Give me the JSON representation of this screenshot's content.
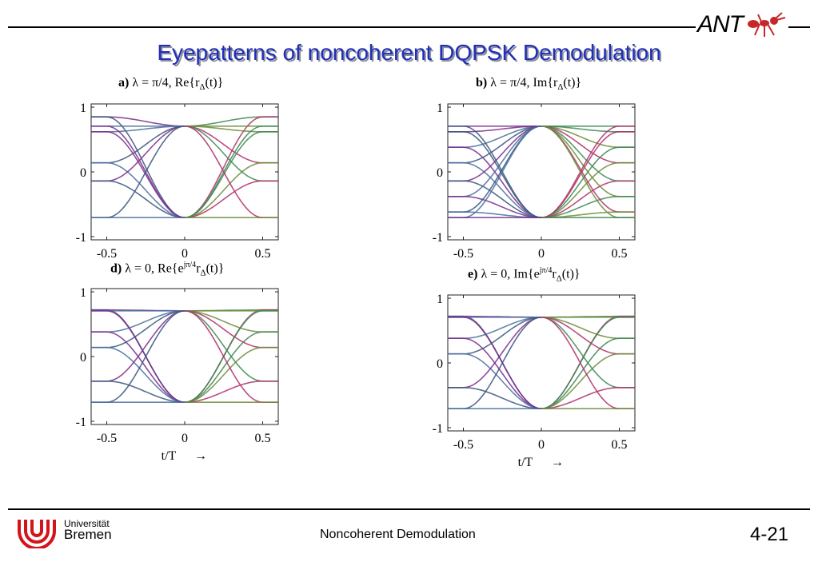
{
  "header": {
    "title": "Eyepatterns of noncoherent DQPSK Demodulation",
    "logo_text": "ANT"
  },
  "footer": {
    "uni_line1": "Universität",
    "uni_line2": "Bremen",
    "topic": "Noncoherent Demodulation",
    "page": "4-21"
  },
  "axis_arrow": "→",
  "colors": {
    "title": "#1f2fb8",
    "traces": [
      "#7a2e8c",
      "#3d8a52",
      "#39557e",
      "#b0306a",
      "#4a6f9e",
      "#6c8c3a"
    ]
  },
  "chart_data": [
    {
      "type": "line",
      "panel_label": "a)",
      "title_main": "λ = π/4, Re{r",
      "title_sub": "Δ",
      "title_end": "(t)}",
      "xlabel": "",
      "xlim": [
        -0.6,
        0.6
      ],
      "ylim": [
        -1.05,
        1.05
      ],
      "xticks": [
        -0.5,
        0,
        0.5
      ],
      "xtick_labels": [
        "-0.5",
        "0",
        "0.5"
      ],
      "yticks": [
        -1,
        0,
        1
      ],
      "ytick_labels": [
        "-1",
        "0",
        "1"
      ],
      "center_value": 0.707,
      "edge_levels": [
        0.85,
        0.62,
        0.14,
        -0.14
      ]
    },
    {
      "type": "line",
      "panel_label": "b)",
      "title_main": "λ = π/4, Im{r",
      "title_sub": "Δ",
      "title_end": "(t)}",
      "xlabel": "",
      "xlim": [
        -0.6,
        0.6
      ],
      "ylim": [
        -1.05,
        1.05
      ],
      "xticks": [
        -0.5,
        0,
        0.5
      ],
      "xtick_labels": [
        "-0.5",
        "0",
        "0.5"
      ],
      "yticks": [
        -1,
        0,
        1
      ],
      "ytick_labels": [
        "-1",
        "0",
        "1"
      ],
      "center_value": 0.707,
      "edge_levels": [
        0.62,
        0.38,
        0.14,
        -0.14,
        -0.38,
        -0.62
      ]
    },
    {
      "type": "line",
      "panel_label": "d)",
      "title_main": "λ = 0, Re{e",
      "title_sup": "jπ/4",
      "title_mid": "r",
      "title_sub": "Δ",
      "title_end": "(t)}",
      "xlabel": "t/T",
      "xlim": [
        -0.6,
        0.6
      ],
      "ylim": [
        -1.05,
        1.05
      ],
      "xticks": [
        -0.5,
        0,
        0.5
      ],
      "xtick_labels": [
        "-0.5",
        "0",
        "0.5"
      ],
      "yticks": [
        -1,
        0,
        1
      ],
      "ytick_labels": [
        "-1",
        "0",
        "1"
      ],
      "center_value": 0.707,
      "edge_levels": [
        0.72,
        0.38,
        0.14,
        -0.38
      ]
    },
    {
      "type": "line",
      "panel_label": "e)",
      "title_main": "λ = 0, Im{e",
      "title_sup": "jπ/4",
      "title_mid": "r",
      "title_sub": "Δ",
      "title_end": "(t)}",
      "xlabel": "t/T",
      "xlim": [
        -0.6,
        0.6
      ],
      "ylim": [
        -1.05,
        1.05
      ],
      "xticks": [
        -0.5,
        0,
        0.5
      ],
      "xtick_labels": [
        "-0.5",
        "0",
        "0.5"
      ],
      "yticks": [
        -1,
        0,
        1
      ],
      "ytick_labels": [
        "-1",
        "0",
        "1"
      ],
      "center_value": 0.707,
      "edge_levels": [
        0.72,
        0.38,
        0.14,
        -0.38
      ]
    }
  ]
}
